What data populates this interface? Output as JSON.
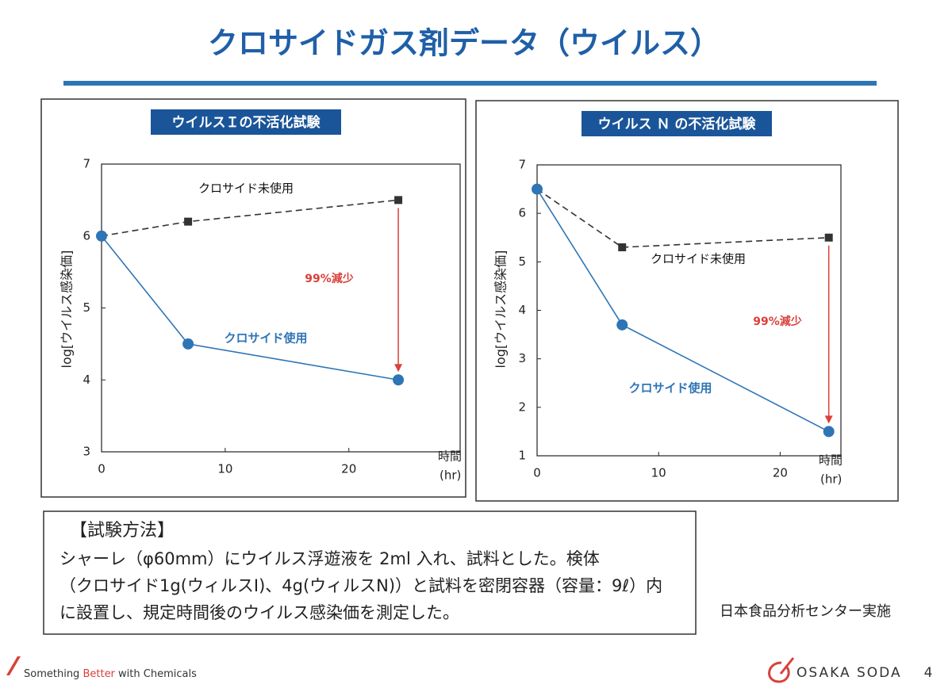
{
  "title": "クロサイドガス剤データ（ウイルス）",
  "chart_data": [
    {
      "type": "line",
      "title": "ウイルスＩの不活化試験",
      "ylabel": "log[ウイルス感染価]",
      "xlabel": "時間",
      "xunit": "(hr)",
      "x": [
        0,
        7,
        24
      ],
      "xlim": [
        0,
        29
      ],
      "xticks": [
        0,
        10,
        20
      ],
      "ylim": [
        3,
        7
      ],
      "yticks": [
        3,
        4,
        5,
        6,
        7
      ],
      "series": [
        {
          "name": "クロサイド未使用",
          "color": "#333333",
          "line_style": "dashed",
          "marker": "square",
          "values": [
            6,
            6.2,
            6.5
          ]
        },
        {
          "name": "クロサイド使用",
          "color": "#2e75b6",
          "line_style": "solid",
          "marker": "circle",
          "values": [
            6,
            4.5,
            4.0
          ]
        }
      ],
      "annotation": "99%減少",
      "annotation_color": "#d9413a"
    },
    {
      "type": "line",
      "title": "ウイルス Ｎ の不活化試験",
      "ylabel": "log[ウイルス感染価]",
      "xlabel": "時間",
      "xunit": "(hr)",
      "x": [
        0,
        7,
        24
      ],
      "xlim": [
        0,
        25
      ],
      "xticks": [
        0,
        10,
        20
      ],
      "ylim": [
        1,
        7
      ],
      "yticks": [
        1,
        2,
        3,
        4,
        5,
        6,
        7
      ],
      "series": [
        {
          "name": "クロサイド未使用",
          "color": "#333333",
          "line_style": "dashed",
          "marker": "square",
          "values": [
            6.5,
            5.3,
            5.5
          ]
        },
        {
          "name": "クロサイド使用",
          "color": "#2e75b6",
          "line_style": "solid",
          "marker": "circle",
          "values": [
            6.5,
            3.7,
            1.5
          ]
        }
      ],
      "annotation": "99%減少",
      "annotation_color": "#d9413a"
    }
  ],
  "method": {
    "heading": "【試験方法】",
    "lines": [
      "シャーレ（φ60mm）にウイルス浮遊液を 2ml 入れ、試料とした。検体",
      "（クロサイド1g(ウィルスI)、4g(ウィルスN)）と試料を密閉容器（容量：9ℓ）内",
      "に設置し、規定時間後のウイルス感染価を測定した。"
    ]
  },
  "credit": "日本食品分析センター実施",
  "footer": {
    "slogan": [
      "Something ",
      "Better",
      " with Chemicals"
    ],
    "logo": "OSAKA SODA",
    "page": "4"
  }
}
